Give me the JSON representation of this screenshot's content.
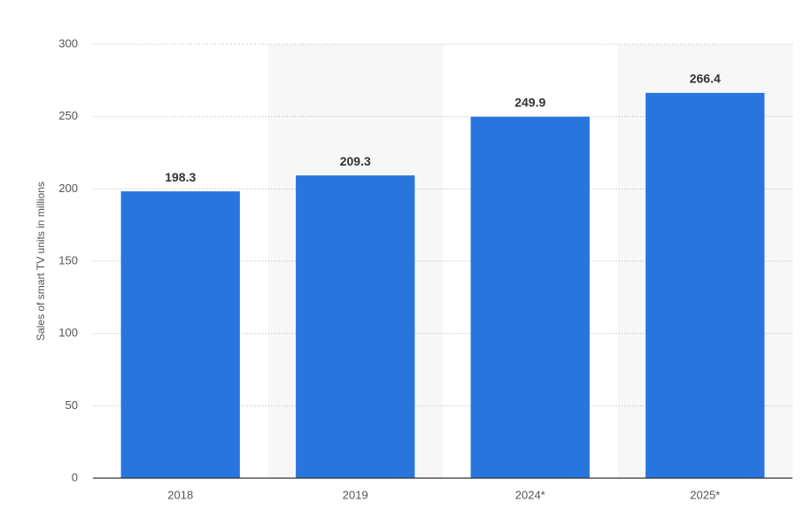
{
  "chart_data": {
    "type": "bar",
    "y_axis_label": "Sales of smart TV units in millions",
    "categories": [
      "2018",
      "2019",
      "2024*",
      "2025*"
    ],
    "values": [
      198.3,
      209.3,
      249.9,
      266.4
    ],
    "color": "#2876dd",
    "ylim": [
      0,
      300
    ],
    "yticks": [
      0,
      50,
      100,
      150,
      200,
      250,
      300
    ],
    "grid": true
  }
}
